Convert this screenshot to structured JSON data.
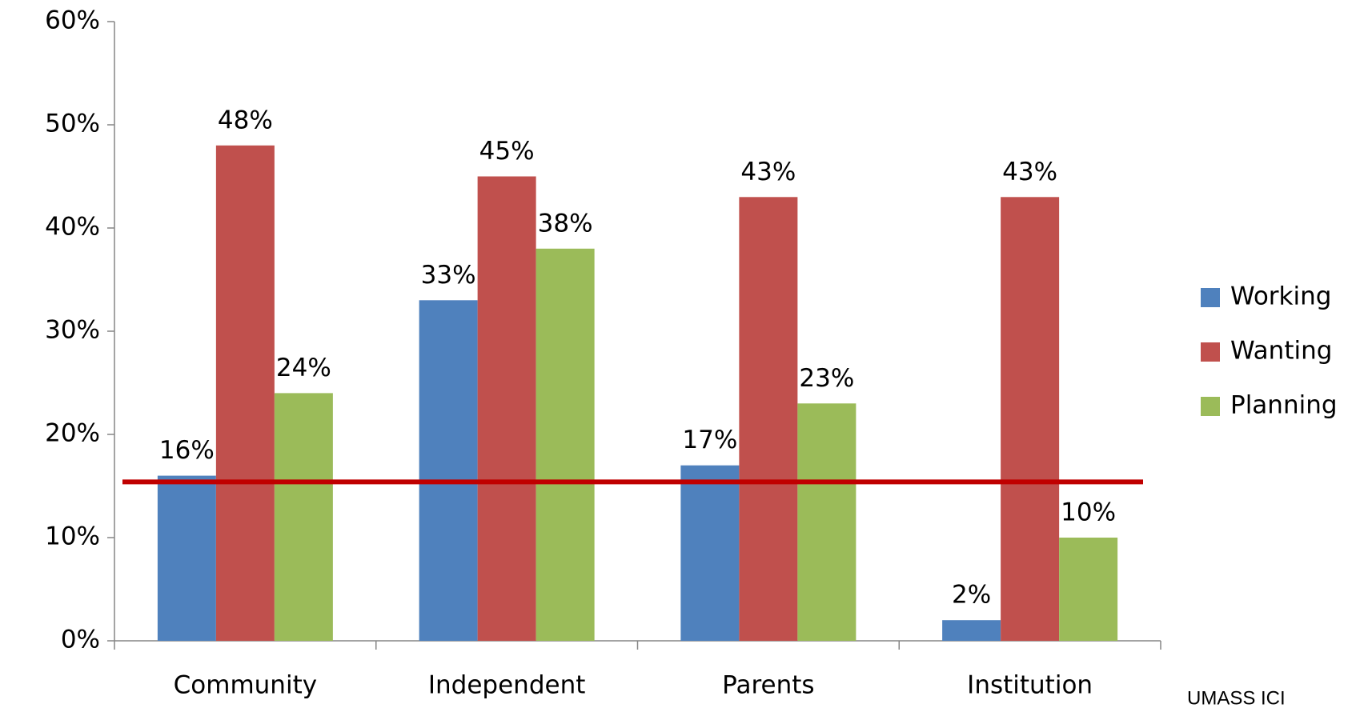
{
  "chart_data": {
    "type": "bar",
    "categories": [
      "Community",
      "Independent",
      "Parents",
      "Institution"
    ],
    "series": [
      {
        "name": "Working",
        "color": "#4f81bd",
        "values": [
          16,
          33,
          17,
          2
        ],
        "value_labels": [
          "16%",
          "33%",
          "17%",
          "2%"
        ]
      },
      {
        "name": "Wanting",
        "color": "#c0504d",
        "values": [
          48,
          45,
          43,
          43
        ],
        "value_labels": [
          "48%",
          "45%",
          "43%",
          "43%"
        ]
      },
      {
        "name": "Planning",
        "color": "#9bbb59",
        "values": [
          24,
          38,
          23,
          10
        ],
        "value_labels": [
          "24%",
          "38%",
          "23%",
          "10%"
        ]
      }
    ],
    "ylim": [
      0,
      60
    ],
    "yticks": [
      {
        "value": 0,
        "label": "0%"
      },
      {
        "value": 10,
        "label": "10%"
      },
      {
        "value": 20,
        "label": "20%"
      },
      {
        "value": 30,
        "label": "30%"
      },
      {
        "value": 40,
        "label": "40%"
      },
      {
        "value": 50,
        "label": "50%"
      },
      {
        "value": 60,
        "label": "60%"
      }
    ],
    "reference_line": {
      "value": 15.4,
      "color": "#c00000"
    },
    "legend": "right",
    "source": "UMASS ICI"
  }
}
